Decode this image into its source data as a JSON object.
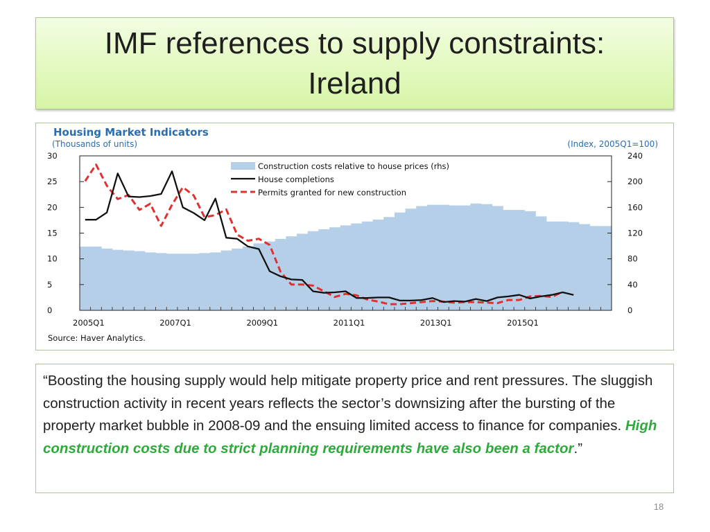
{
  "slide": {
    "title_line1": "IMF references to supply constraints:",
    "title_line2": "Ireland",
    "page_number": "18"
  },
  "quote": {
    "text_plain": "“Boosting the housing supply would help mitigate property price and rent pressures. The sluggish construction activity in recent years reflects the sector’s downsizing after the bursting of the property market bubble in 2008-09 and the ensuing limited access to finance for companies. ",
    "text_highlight": "High construction costs due to strict planning requirements have also been a factor",
    "text_end": ".”",
    "highlight_color": "#2eaa3c"
  },
  "chart_data": {
    "type": "line",
    "title": "Housing Market Indicators",
    "left_unit": "(Thousands of units)",
    "right_unit": "(Index, 2005Q1=100)",
    "source": "Source: Haver Analytics.",
    "x_start": "2005Q1",
    "x_tick_labels": [
      "2005Q1",
      "2007Q1",
      "2009Q1",
      "2011Q1",
      "2013Q1",
      "2015Q1"
    ],
    "ylim_left": [
      0,
      30
    ],
    "yticks_left": [
      0,
      5,
      10,
      15,
      20,
      25,
      30
    ],
    "ylim_right": [
      0,
      240
    ],
    "yticks_right": [
      0,
      40,
      80,
      120,
      160,
      200,
      240
    ],
    "series": [
      {
        "name": "Construction costs relative to house prices (rhs)",
        "kind": "bar",
        "axis": "right",
        "color": "#b6cfe8",
        "values": [
          99,
          99,
          96,
          94,
          93,
          92,
          90,
          89,
          88,
          88,
          88,
          89,
          90,
          93,
          96,
          99,
          104,
          107,
          111,
          115,
          119,
          123,
          126,
          129,
          132,
          135,
          138,
          141,
          145,
          152,
          158,
          162,
          164,
          164,
          163,
          163,
          166,
          165,
          162,
          156,
          156,
          154,
          146,
          138,
          138,
          137,
          134,
          131,
          131
        ]
      },
      {
        "name": "House completions",
        "kind": "line",
        "axis": "left",
        "color": "#111111",
        "dash": false,
        "values": [
          17.6,
          17.6,
          19.0,
          26.6,
          22.1,
          22.0,
          22.2,
          22.6,
          27.0,
          20.0,
          18.9,
          17.5,
          21.7,
          14.1,
          13.9,
          12.4,
          11.9,
          7.6,
          6.6,
          6.0,
          5.9,
          3.7,
          3.4,
          3.5,
          3.7,
          2.4,
          2.4,
          2.5,
          2.5,
          1.9,
          1.9,
          2.0,
          2.4,
          1.6,
          1.8,
          1.7,
          2.2,
          1.8,
          2.5,
          2.7,
          3.0,
          2.3,
          2.7,
          3.0,
          3.5,
          3.0
        ]
      },
      {
        "name": "Permits granted for new construction",
        "kind": "line",
        "axis": "left",
        "color": "#e03030",
        "dash": true,
        "values": [
          25.1,
          28.3,
          24.2,
          21.6,
          22.4,
          19.5,
          20.7,
          16.4,
          20.5,
          23.9,
          22.3,
          18.1,
          18.5,
          19.6,
          14.7,
          13.5,
          13.9,
          12.7,
          7.5,
          5.0,
          5.0,
          4.8,
          3.7,
          2.6,
          3.2,
          2.9,
          2.1,
          1.7,
          1.2,
          1.2,
          1.4,
          1.6,
          1.8,
          1.7,
          1.5,
          1.6,
          1.6,
          1.5,
          1.4,
          2.0,
          2.0,
          2.7,
          2.8,
          2.6,
          3.6
        ]
      }
    ]
  }
}
